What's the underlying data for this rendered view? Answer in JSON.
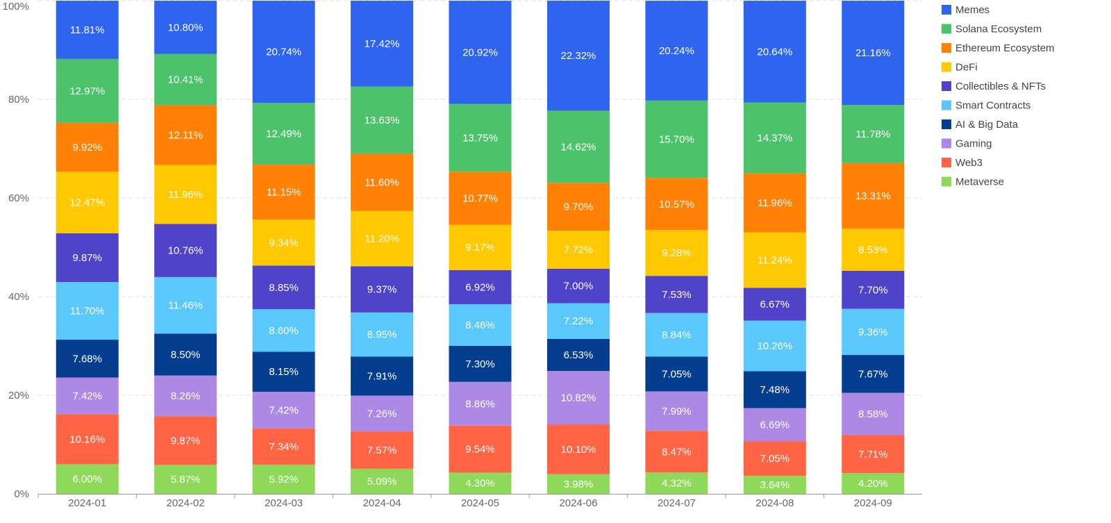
{
  "chart_data": {
    "type": "bar",
    "stacked": true,
    "normalized": true,
    "categories": [
      "2024-01",
      "2024-02",
      "2024-03",
      "2024-04",
      "2024-05",
      "2024-06",
      "2024-07",
      "2024-08",
      "2024-09"
    ],
    "ylim": [
      0,
      100
    ],
    "yticks": [
      "0%",
      "20%",
      "40%",
      "60%",
      "80%",
      "100%"
    ],
    "grid": true,
    "legend": "right",
    "series": [
      {
        "name": "Metaverse",
        "color": "#8fd95a",
        "values": [
          6.0,
          5.87,
          5.92,
          5.09,
          4.3,
          3.98,
          4.32,
          3.64,
          4.2
        ]
      },
      {
        "name": "Web3",
        "color": "#ff6445",
        "values": [
          10.16,
          9.87,
          7.34,
          7.57,
          9.54,
          10.1,
          8.47,
          7.05,
          7.71
        ]
      },
      {
        "name": "Gaming",
        "color": "#ad89e6",
        "values": [
          7.42,
          8.26,
          7.42,
          7.26,
          8.86,
          10.82,
          7.99,
          6.69,
          8.58
        ]
      },
      {
        "name": "AI & Big Data",
        "color": "#063e8f",
        "values": [
          7.68,
          8.5,
          8.15,
          7.91,
          7.3,
          6.53,
          7.05,
          7.48,
          7.67
        ]
      },
      {
        "name": "Smart Contracts",
        "color": "#5ac8fa",
        "values": [
          11.7,
          11.46,
          8.6,
          8.95,
          8.46,
          7.22,
          8.84,
          10.26,
          9.36
        ]
      },
      {
        "name": "Collectibles & NFTs",
        "color": "#4f44c9",
        "values": [
          9.87,
          10.76,
          8.85,
          9.37,
          6.92,
          7.0,
          7.53,
          6.67,
          7.7
        ]
      },
      {
        "name": "DeFi",
        "color": "#ffc800",
        "values": [
          12.47,
          11.96,
          9.34,
          11.2,
          9.17,
          7.72,
          9.28,
          11.24,
          8.53
        ]
      },
      {
        "name": "Ethereum Ecosystem",
        "color": "#ff8106",
        "values": [
          9.92,
          12.11,
          11.15,
          11.6,
          10.77,
          9.7,
          10.57,
          11.96,
          13.31
        ]
      },
      {
        "name": "Solana Ecosystem",
        "color": "#4cc36a",
        "values": [
          12.97,
          10.41,
          12.49,
          13.63,
          13.75,
          14.62,
          15.7,
          14.37,
          11.78
        ]
      },
      {
        "name": "Memes",
        "color": "#2e64ee",
        "values": [
          11.81,
          10.8,
          20.74,
          17.42,
          20.92,
          22.32,
          20.24,
          20.64,
          21.16
        ]
      }
    ]
  }
}
